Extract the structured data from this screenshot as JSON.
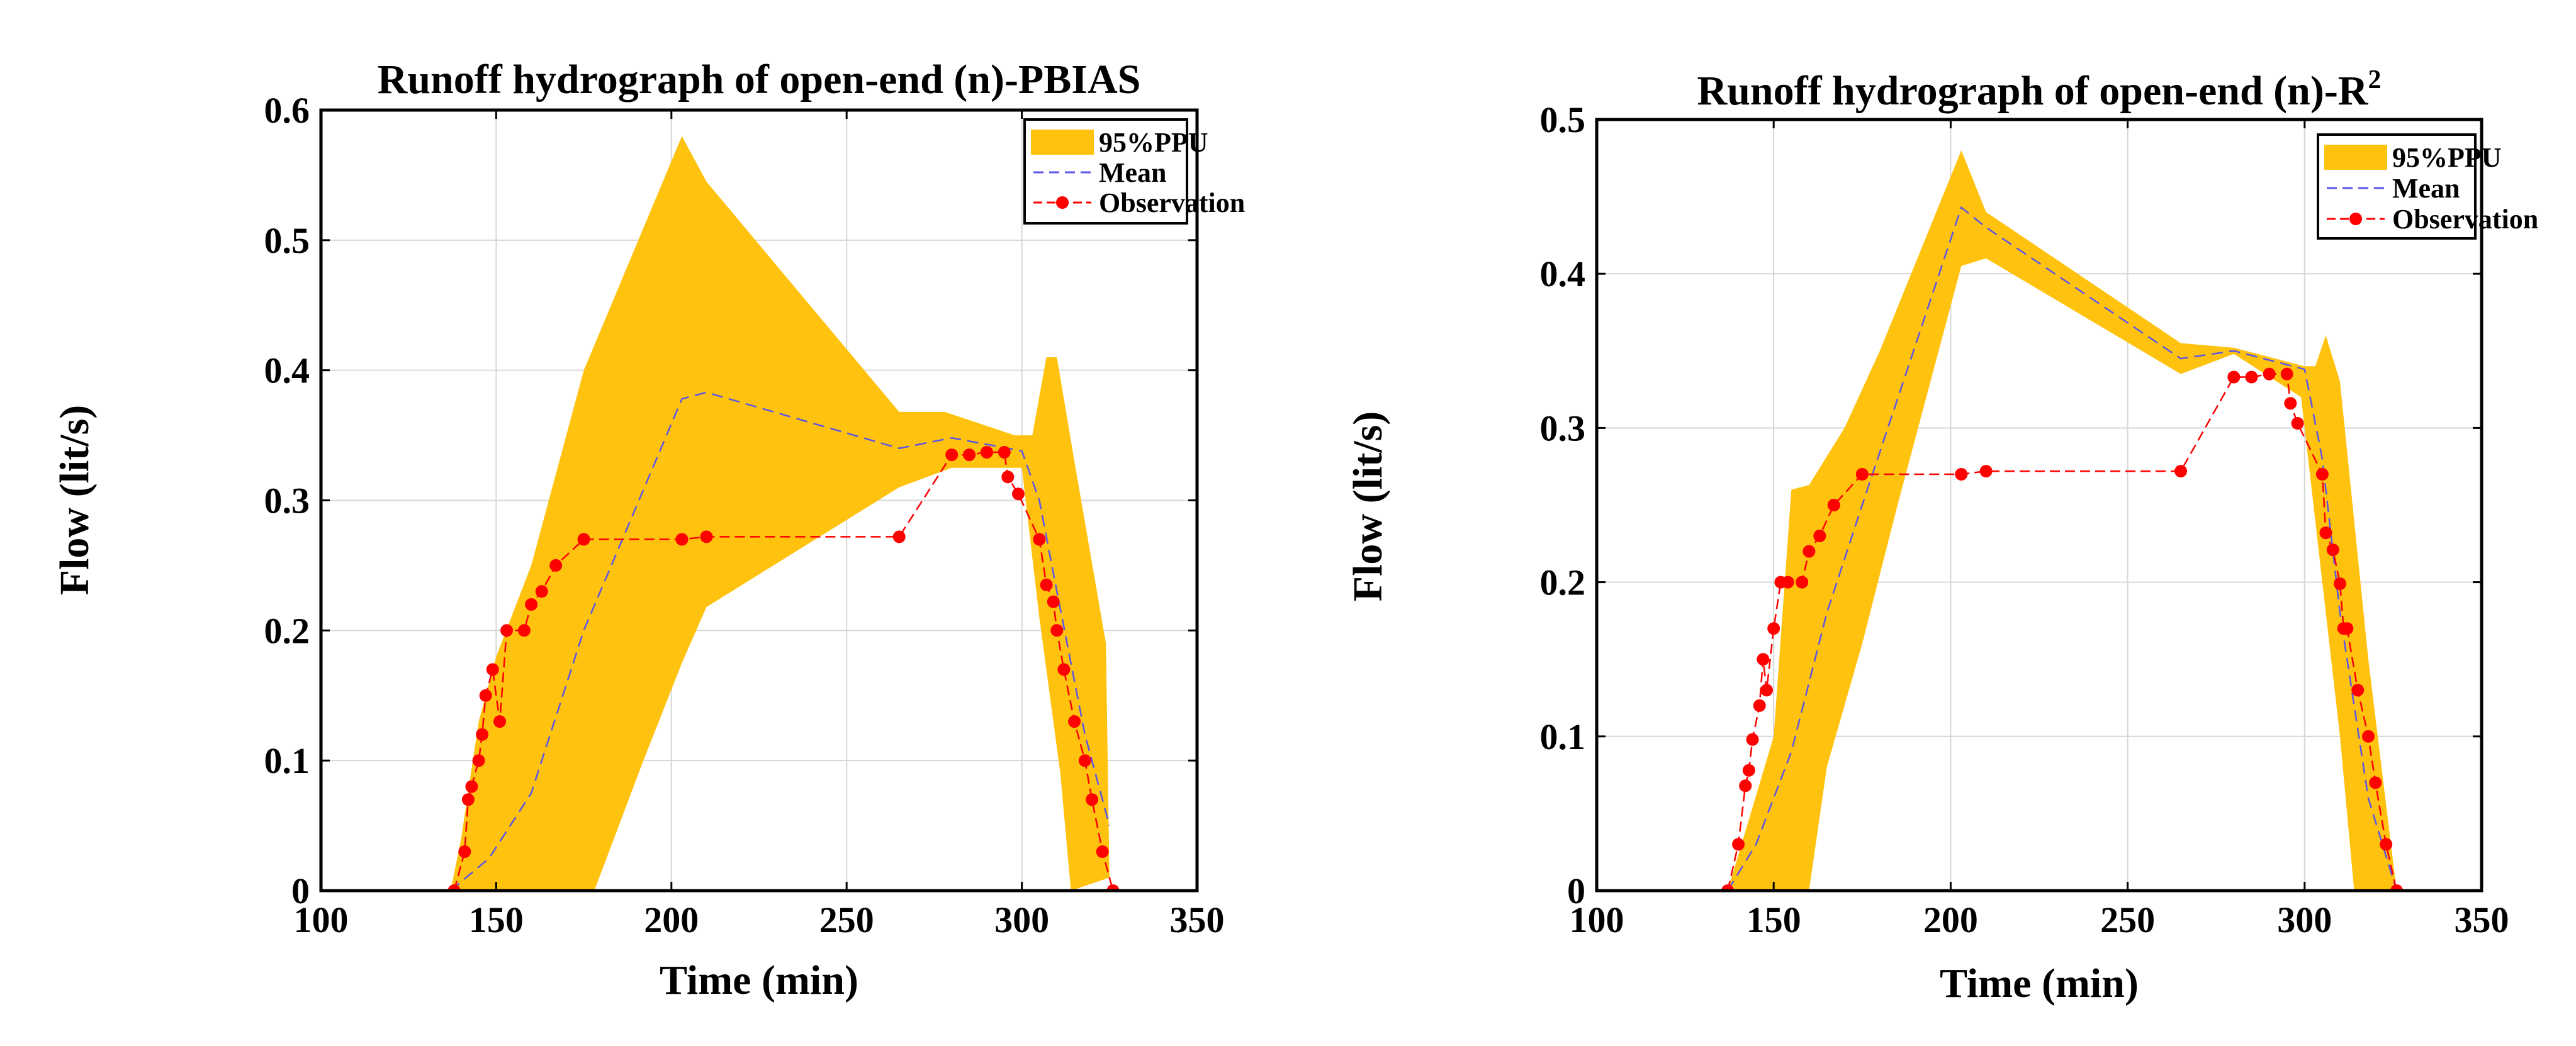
{
  "chart_data": [
    {
      "type": "line",
      "title": "Runoff hydrograph of open-end (n)-PBIAS",
      "title_sup": "",
      "xlabel": "Time (min)",
      "ylabel": "Flow (lit/s)",
      "xlim": [
        100,
        350
      ],
      "ylim": [
        0,
        0.6
      ],
      "xticks": [
        100,
        150,
        200,
        250,
        300,
        350
      ],
      "yticks": [
        0,
        0.1,
        0.2,
        0.3,
        0.4,
        0.5,
        0.6
      ],
      "xtick_labels": [
        "100",
        "150",
        "200",
        "250",
        "300",
        "350"
      ],
      "ytick_labels": [
        "0",
        "0.1",
        "0.2",
        "0.3",
        "0.4",
        "0.5",
        "0.6"
      ],
      "grid": true,
      "legend": [
        "95%PPU",
        "Mean",
        "Observation"
      ],
      "legend_position": "top-right",
      "colors": {
        "band": "#FFC20E",
        "mean": "#5A55E8",
        "observation": "#FF0000"
      },
      "series": [
        {
          "name": "95%PPU",
          "kind": "band",
          "upper": [
            [
              137,
              0
            ],
            [
              140,
              0.04
            ],
            [
              145,
              0.13
            ],
            [
              150,
              0.18
            ],
            [
              160,
              0.25
            ],
            [
              175,
              0.4
            ],
            [
              203,
              0.58
            ],
            [
              210,
              0.545
            ],
            [
              265,
              0.368
            ],
            [
              278,
              0.368
            ],
            [
              298,
              0.35
            ],
            [
              303,
              0.35
            ],
            [
              307,
              0.41
            ],
            [
              310,
              0.41
            ],
            [
              315,
              0.33
            ],
            [
              324,
              0.19
            ],
            [
              325,
              0.01
            ]
          ],
          "lower": [
            [
              137,
              0
            ],
            [
              178,
              0
            ],
            [
              192,
              0.1
            ],
            [
              203,
              0.175
            ],
            [
              210,
              0.218
            ],
            [
              265,
              0.31
            ],
            [
              280,
              0.325
            ],
            [
              300,
              0.325
            ],
            [
              305,
              0.21
            ],
            [
              311,
              0.09
            ],
            [
              314,
              0
            ],
            [
              325,
              0.01
            ]
          ]
        },
        {
          "name": "Mean",
          "kind": "dashed-line",
          "x": [
            137,
            148,
            160,
            175,
            203,
            210,
            265,
            280,
            300,
            305,
            310,
            318,
            325
          ],
          "y": [
            0,
            0.025,
            0.075,
            0.2,
            0.378,
            0.383,
            0.34,
            0.348,
            0.338,
            0.3,
            0.23,
            0.12,
            0.05
          ]
        },
        {
          "name": "Observation",
          "kind": "line-markers",
          "x": [
            138,
            141,
            142,
            143,
            145,
            146,
            147,
            149,
            151,
            153,
            158,
            160,
            163,
            167,
            175,
            203,
            210,
            265,
            280,
            285,
            290,
            295,
            296,
            299,
            305,
            307,
            309,
            310,
            312,
            315,
            318,
            320,
            323,
            326
          ],
          "y": [
            0,
            0.03,
            0.07,
            0.08,
            0.1,
            0.12,
            0.15,
            0.17,
            0.13,
            0.2,
            0.2,
            0.22,
            0.23,
            0.25,
            0.27,
            0.27,
            0.272,
            0.272,
            0.335,
            0.335,
            0.337,
            0.337,
            0.318,
            0.305,
            0.27,
            0.235,
            0.222,
            0.2,
            0.17,
            0.13,
            0.1,
            0.07,
            0.03,
            0
          ]
        }
      ]
    },
    {
      "type": "line",
      "title": "Runoff hydrograph of open-end (n)-R",
      "title_sup": "2",
      "xlabel": "Time (min)",
      "ylabel": "Flow (lit/s)",
      "xlim": [
        100,
        350
      ],
      "ylim": [
        0,
        0.5
      ],
      "xticks": [
        100,
        150,
        200,
        250,
        300,
        350
      ],
      "yticks": [
        0,
        0.1,
        0.2,
        0.3,
        0.4,
        0.5
      ],
      "xtick_labels": [
        "100",
        "150",
        "200",
        "250",
        "300",
        "350"
      ],
      "ytick_labels": [
        "0",
        "0.1",
        "0.2",
        "0.3",
        "0.4",
        "0.5"
      ],
      "grid": true,
      "legend": [
        "95%PPU",
        "Mean",
        "Observation"
      ],
      "legend_position": "top-right",
      "colors": {
        "band": "#FFC20E",
        "mean": "#5A55E8",
        "observation": "#FF0000"
      },
      "series": [
        {
          "name": "95%PPU",
          "kind": "band",
          "upper": [
            [
              137,
              0
            ],
            [
              150,
              0.1
            ],
            [
              155,
              0.26
            ],
            [
              160,
              0.263
            ],
            [
              170,
              0.3
            ],
            [
              180,
              0.35
            ],
            [
              203,
              0.48
            ],
            [
              210,
              0.44
            ],
            [
              265,
              0.355
            ],
            [
              280,
              0.352
            ],
            [
              300,
              0.34
            ],
            [
              303,
              0.34
            ],
            [
              306,
              0.36
            ],
            [
              310,
              0.33
            ],
            [
              318,
              0.15
            ],
            [
              326,
              0
            ]
          ],
          "lower": [
            [
              137,
              0
            ],
            [
              155,
              0
            ],
            [
              160,
              0
            ],
            [
              165,
              0.08
            ],
            [
              175,
              0.16
            ],
            [
              185,
              0.25
            ],
            [
              203,
              0.405
            ],
            [
              210,
              0.41
            ],
            [
              265,
              0.335
            ],
            [
              280,
              0.348
            ],
            [
              299,
              0.32
            ],
            [
              305,
              0.2
            ],
            [
              310,
              0.1
            ],
            [
              314,
              0
            ],
            [
              326,
              0
            ]
          ]
        },
        {
          "name": "Mean",
          "kind": "dashed-line",
          "x": [
            137,
            145,
            155,
            165,
            175,
            203,
            210,
            265,
            280,
            300,
            305,
            310,
            318,
            326
          ],
          "y": [
            0,
            0.03,
            0.09,
            0.18,
            0.25,
            0.443,
            0.43,
            0.345,
            0.35,
            0.338,
            0.28,
            0.18,
            0.06,
            0
          ]
        },
        {
          "name": "Observation",
          "kind": "line-markers",
          "x": [
            137,
            140,
            142,
            143,
            144,
            146,
            147,
            148,
            150,
            152,
            154,
            158,
            160,
            163,
            167,
            175,
            203,
            210,
            265,
            280,
            285,
            290,
            295,
            296,
            298,
            305,
            306,
            308,
            310,
            311,
            312,
            315,
            318,
            320,
            323,
            326
          ],
          "y": [
            0,
            0.03,
            0.068,
            0.078,
            0.098,
            0.12,
            0.15,
            0.13,
            0.17,
            0.2,
            0.2,
            0.2,
            0.22,
            0.23,
            0.25,
            0.27,
            0.27,
            0.272,
            0.272,
            0.333,
            0.333,
            0.335,
            0.335,
            0.316,
            0.303,
            0.27,
            0.232,
            0.221,
            0.199,
            0.17,
            0.17,
            0.13,
            0.1,
            0.07,
            0.03,
            0
          ]
        }
      ]
    }
  ]
}
